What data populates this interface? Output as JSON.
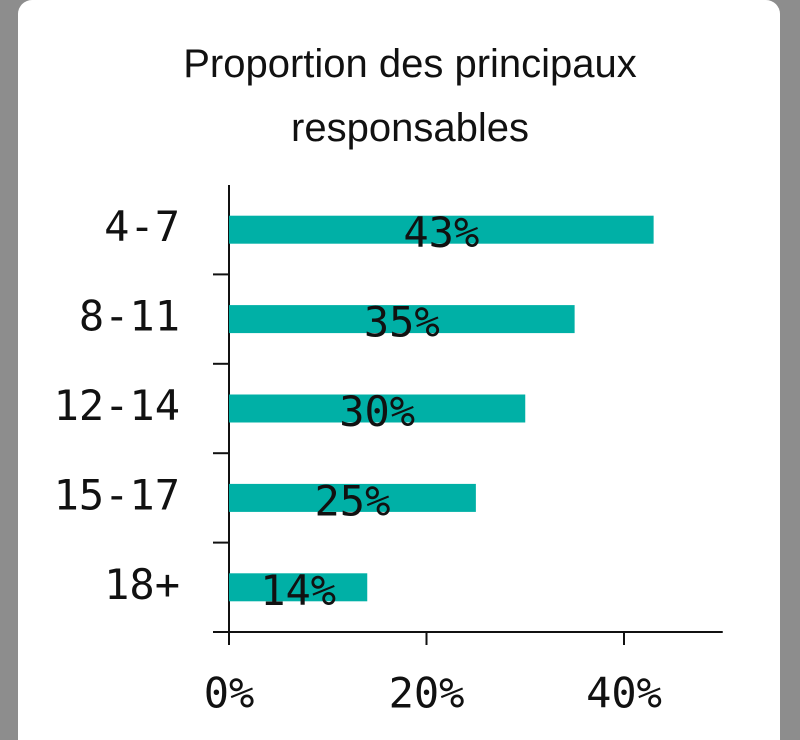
{
  "chart_data": {
    "type": "bar",
    "orientation": "horizontal",
    "title": "Proportion des principaux responsables",
    "categories": [
      "4-7",
      "8-11",
      "12-14",
      "15-17",
      "18+"
    ],
    "values": [
      43,
      35,
      30,
      25,
      14
    ],
    "value_labels": [
      "43%",
      "35%",
      "30%",
      "25%",
      "14%"
    ],
    "color": "#00b0a6",
    "xlim": [
      0,
      50
    ],
    "xticks": [
      {
        "value": 0,
        "label": "0%"
      },
      {
        "value": 20,
        "label": "20%"
      },
      {
        "value": 40,
        "label": "40%"
      }
    ],
    "grid": false
  }
}
